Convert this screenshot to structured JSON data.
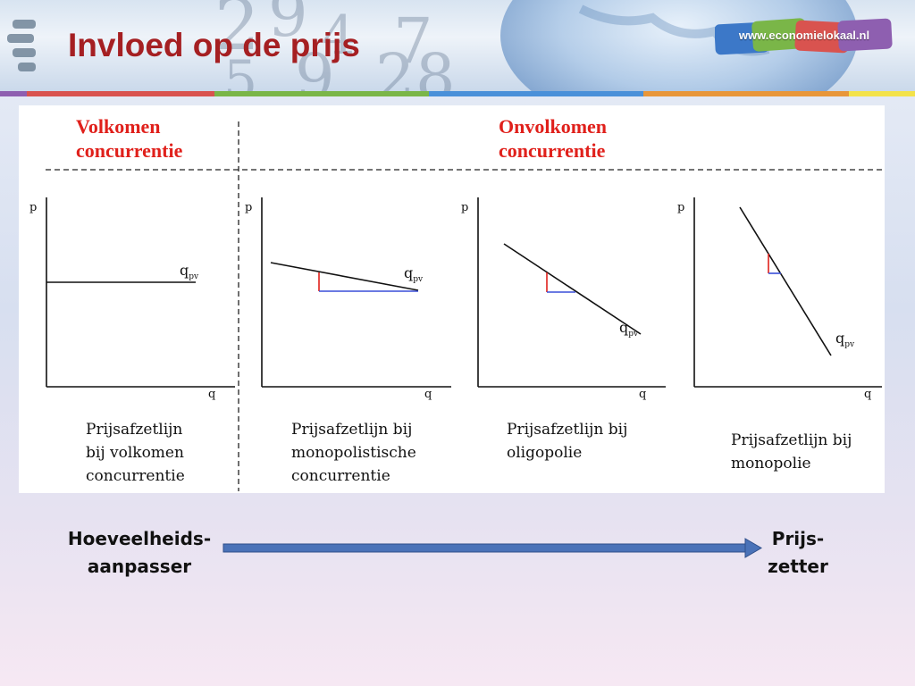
{
  "header": {
    "title": "Invloed op de prijs",
    "site_url": "www.economielokaal.nl",
    "bar_colors": [
      "#d9534f",
      "#7ab648",
      "#4a90d9",
      "#e8963a",
      "#8e5fb0",
      "#f3e24a"
    ]
  },
  "diagram": {
    "left_heading": [
      "Volkomen",
      "concurrentie"
    ],
    "right_heading": [
      "Onvolkomen",
      "concurrentie"
    ],
    "heading_color": "#e0201b",
    "axis_labels": {
      "y": "p",
      "x": "q"
    },
    "curve_label": "q",
    "curve_label_sub": "pv",
    "panels": [
      {
        "caption": [
          "Prijsafzetlijn",
          "bij volkomen",
          "concurrentie"
        ],
        "demand_line": "horizontal"
      },
      {
        "caption": [
          "Prijsafzetlijn bij",
          "monopolistische",
          "concurrentie"
        ],
        "demand_line": "slightly sloping"
      },
      {
        "caption": [
          "Prijsafzetlijn bij",
          "oligopolie"
        ],
        "demand_line": "moderately sloping"
      },
      {
        "caption": [
          "Prijsafzetlijn bij",
          "monopolie"
        ],
        "demand_line": "steep"
      }
    ],
    "triangle_colors": {
      "vertical": "#e0201b",
      "horizontal": "#3a4fd8"
    }
  },
  "bottom": {
    "left_label": [
      "Hoeveelheids-",
      "aanpasser"
    ],
    "right_label": [
      "Prijs-",
      "zetter"
    ],
    "arrow_color": "#4a72b8"
  }
}
